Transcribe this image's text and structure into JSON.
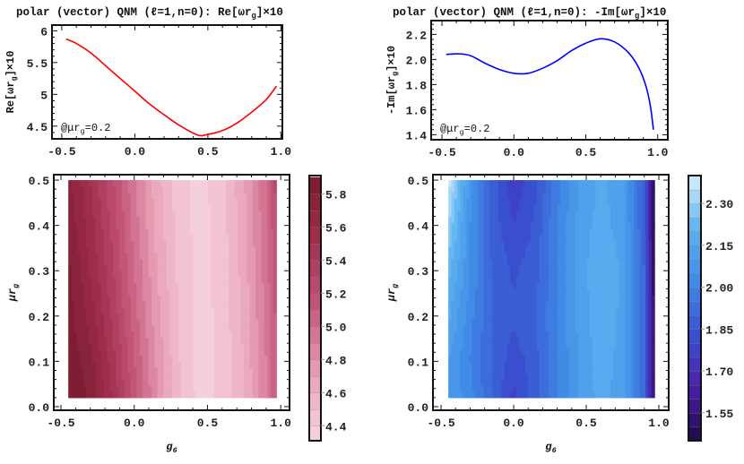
{
  "chart_data": [
    {
      "type": "line",
      "title": {
        "pre": "polar (vector) QNM (ℓ=1,n=0): Re[ωr",
        "sub": "g",
        "post": "]×10"
      },
      "ylabel": {
        "pre": "Re[ωr",
        "sub": "g",
        "post": "]×10"
      },
      "annotation": {
        "pre": "@μr",
        "sub": "g",
        "post": "=0.2"
      },
      "xlim": [
        -0.567,
        1.01
      ],
      "ylim": [
        4.3,
        6.09
      ],
      "xticks": [
        "-0.5",
        "0.0",
        "0.5",
        "1.0"
      ],
      "xtick_values": [
        -0.5,
        0,
        0.5,
        1.0
      ],
      "yticks": [
        "4.5",
        "5",
        "5.5",
        "6"
      ],
      "ytick_values": [
        4.5,
        5,
        5.5,
        6
      ],
      "color": "#ff0000",
      "x": [
        -0.47,
        -0.4,
        -0.3,
        -0.2,
        -0.1,
        0,
        0.1,
        0.2,
        0.3,
        0.43,
        0.5,
        0.6,
        0.7,
        0.8,
        0.9,
        0.97
      ],
      "y": [
        5.87,
        5.8,
        5.65,
        5.45,
        5.25,
        5.05,
        4.85,
        4.68,
        4.52,
        4.36,
        4.37,
        4.43,
        4.55,
        4.72,
        4.92,
        5.13
      ]
    },
    {
      "type": "line",
      "title": {
        "pre": "polar (vector) QNM (ℓ=1,n=0): -Im[ωr",
        "sub": "g",
        "post": "]×10"
      },
      "ylabel": {
        "pre": "-Im[ωr",
        "sub": "g",
        "post": "]×10"
      },
      "annotation": {
        "pre": "@μr",
        "sub": "g",
        "post": "=0.2"
      },
      "xlim": [
        -0.575,
        1.07
      ],
      "ylim": [
        1.36,
        2.31
      ],
      "xticks": [
        "-0.5",
        "0.0",
        "0.5",
        "1.0"
      ],
      "xtick_values": [
        -0.5,
        0,
        0.5,
        1.0
      ],
      "yticks": [
        "1.4",
        "1.6",
        "1.8",
        "2.0",
        "2.2"
      ],
      "ytick_values": [
        1.4,
        1.6,
        1.8,
        2.0,
        2.2
      ],
      "color": "#0000ff",
      "x": [
        -0.47,
        -0.38,
        -0.3,
        -0.2,
        -0.1,
        0,
        0.1,
        0.2,
        0.3,
        0.4,
        0.5,
        0.6,
        0.7,
        0.8,
        0.87,
        0.92,
        0.95,
        0.97
      ],
      "y": [
        2.04,
        2.045,
        2.03,
        1.97,
        1.92,
        1.89,
        1.89,
        1.93,
        1.99,
        2.07,
        2.13,
        2.165,
        2.14,
        2.05,
        1.93,
        1.78,
        1.62,
        1.44
      ]
    },
    {
      "type": "heatmap",
      "xlabel": {
        "pre": "g",
        "sub": "6"
      },
      "ylabel": {
        "pre": "μr",
        "sub": "g"
      },
      "xlim": [
        -0.549,
        1.06
      ],
      "ylim": [
        -0.008,
        0.512
      ],
      "xticks": [
        "-0.5",
        "0.0",
        "0.5",
        "1.0"
      ],
      "xtick_values": [
        -0.5,
        0,
        0.5,
        1.0
      ],
      "yticks": [
        "0.0",
        "0.1",
        "0.2",
        "0.3",
        "0.4",
        "0.5"
      ],
      "ytick_values": [
        0,
        0.1,
        0.2,
        0.3,
        0.4,
        0.5
      ],
      "g": [
        -0.45,
        -0.3,
        -0.15,
        0,
        0.15,
        0.3,
        0.45,
        0.6,
        0.75,
        0.9,
        0.97
      ],
      "mu": [
        0.02,
        0.1,
        0.2,
        0.3,
        0.4,
        0.5
      ],
      "z": [
        [
          5.9,
          5.78,
          5.5,
          5.15,
          4.82,
          4.52,
          4.36,
          4.42,
          4.6,
          4.88,
          5.1
        ],
        [
          5.88,
          5.74,
          5.45,
          5.11,
          4.79,
          4.51,
          4.36,
          4.42,
          4.61,
          4.9,
          5.11
        ],
        [
          5.85,
          5.66,
          5.38,
          5.05,
          4.75,
          4.5,
          4.36,
          4.43,
          4.63,
          4.92,
          5.13
        ],
        [
          5.82,
          5.6,
          5.32,
          5.0,
          4.71,
          4.48,
          4.36,
          4.44,
          4.65,
          4.95,
          5.16
        ],
        [
          5.78,
          5.55,
          5.27,
          4.96,
          4.68,
          4.46,
          4.36,
          4.45,
          4.67,
          4.98,
          5.2
        ],
        [
          5.74,
          5.5,
          5.22,
          4.92,
          4.65,
          4.45,
          4.36,
          4.46,
          4.69,
          5.0,
          5.25
        ]
      ],
      "levels": {
        "min": 4.3,
        "max": 5.9,
        "step": 0.1
      },
      "colorbar": {
        "range": [
          4.31,
          5.91
        ],
        "ticks": [
          "4.4",
          "4.6",
          "4.8",
          "5.0",
          "5.2",
          "5.4",
          "5.6",
          "5.8"
        ],
        "tick_values": [
          4.4,
          4.6,
          4.8,
          5.0,
          5.2,
          5.4,
          5.6,
          5.8
        ]
      },
      "colors": [
        "#f7d6e0",
        "#e9a3b8",
        "#c65a7c",
        "#a3304f",
        "#7a1a30"
      ]
    },
    {
      "type": "heatmap",
      "xlabel": {
        "pre": "g",
        "sub": "6"
      },
      "ylabel": {
        "pre": "μr",
        "sub": "g"
      },
      "xlim": [
        -0.556,
        1.068
      ],
      "ylim": [
        -0.008,
        0.512
      ],
      "xticks": [
        "-0.5",
        "0.0",
        "0.5",
        "1.0"
      ],
      "xtick_values": [
        -0.5,
        0,
        0.5,
        1.0
      ],
      "yticks": [
        "0.0",
        "0.1",
        "0.2",
        "0.3",
        "0.4",
        "0.5"
      ],
      "ytick_values": [
        0,
        0.1,
        0.2,
        0.3,
        0.4,
        0.5
      ],
      "g": [
        -0.45,
        -0.3,
        -0.15,
        0,
        0.15,
        0.3,
        0.45,
        0.6,
        0.75,
        0.9,
        0.97
      ],
      "mu": [
        0.02,
        0.1,
        0.2,
        0.3,
        0.4,
        0.5
      ],
      "z": [
        [
          2.1,
          2.02,
          1.9,
          1.78,
          1.88,
          2.0,
          2.1,
          2.17,
          2.12,
          1.9,
          1.5
        ],
        [
          2.1,
          2.0,
          1.9,
          1.82,
          1.88,
          2.0,
          2.1,
          2.18,
          2.13,
          1.9,
          1.5
        ],
        [
          2.16,
          2.02,
          1.9,
          1.86,
          1.9,
          2.0,
          2.12,
          2.18,
          2.14,
          1.9,
          1.5
        ],
        [
          2.22,
          2.05,
          1.9,
          1.84,
          1.88,
          2.0,
          2.12,
          2.2,
          2.14,
          1.9,
          1.48
        ],
        [
          2.3,
          2.05,
          1.88,
          1.8,
          1.86,
          2.0,
          2.12,
          2.17,
          2.13,
          1.88,
          1.46
        ],
        [
          2.38,
          2.08,
          1.88,
          1.76,
          1.84,
          1.98,
          2.1,
          2.16,
          2.12,
          1.88,
          1.46
        ]
      ],
      "levels": {
        "min": 1.45,
        "max": 2.4,
        "step": 0.05
      },
      "colorbar": {
        "range": [
          1.45,
          2.4
        ],
        "ticks": [
          "1.55",
          "1.70",
          "1.85",
          "2.00",
          "2.15",
          "2.30"
        ],
        "tick_values": [
          1.55,
          1.7,
          1.85,
          2.0,
          2.15,
          2.3
        ]
      },
      "colors": [
        "#1c0a45",
        "#4a1fa6",
        "#3a50d0",
        "#3f8ae6",
        "#5cb3f0",
        "#d6eefc"
      ]
    }
  ]
}
